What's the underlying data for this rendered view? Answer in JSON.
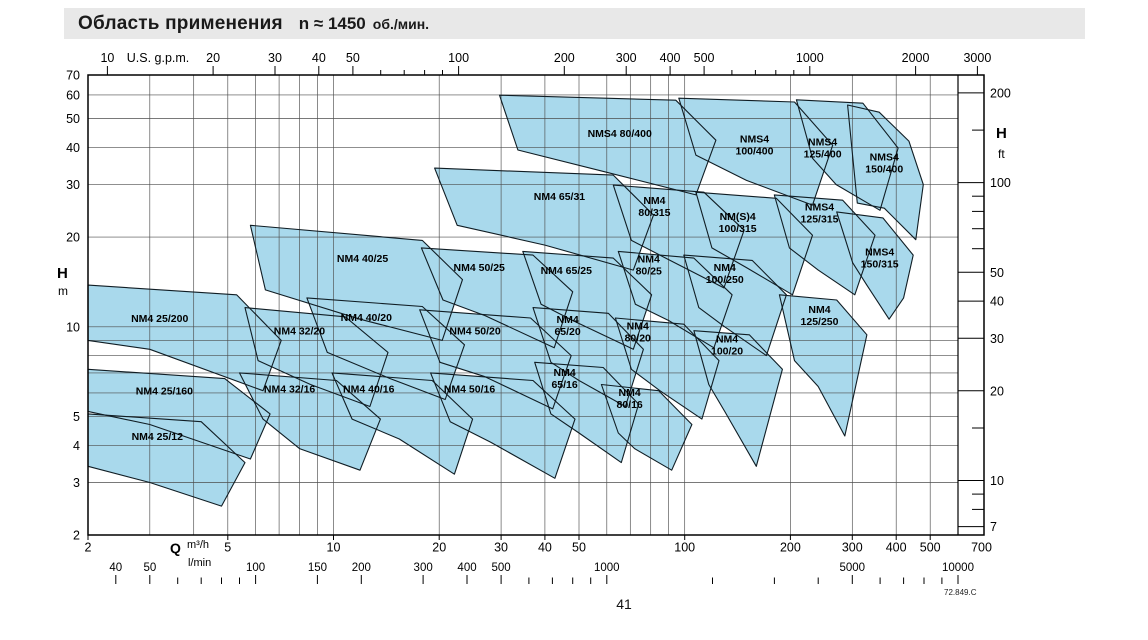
{
  "header": {
    "title": "Область применения",
    "speed": "n ≈ 1450",
    "speed_unit": "об./мин."
  },
  "footer": {
    "page_number": "41",
    "doc_ref": "72.849.C"
  },
  "chart_data": {
    "type": "area",
    "title": "Область применения n ≈ 1450 об./мин.",
    "x": {
      "axis": "Q",
      "unit_primary": "m³/h",
      "unit_secondary": "l/min",
      "min": 2,
      "max": 600,
      "grid": [
        2,
        3,
        4,
        5,
        6,
        7,
        8,
        9,
        10,
        20,
        30,
        40,
        50,
        60,
        70,
        80,
        90,
        100,
        200,
        300,
        400,
        500,
        600
      ],
      "labels": [
        2,
        5,
        10,
        20,
        30,
        40,
        50,
        100,
        200,
        300,
        400,
        500,
        700
      ]
    },
    "y": {
      "axis": "H",
      "unit": "m",
      "min": 2,
      "max": 70,
      "grid": [
        2,
        3,
        4,
        5,
        6,
        7,
        8,
        9,
        10,
        20,
        30,
        40,
        50,
        60,
        70
      ],
      "labels": [
        2,
        3,
        4,
        5,
        10,
        20,
        30,
        40,
        50,
        60,
        70
      ]
    },
    "gpm_scale": {
      "title": "U.S. g.p.m.",
      "per_m3h": 4.4029,
      "labels": [
        10,
        20,
        30,
        40,
        50,
        100,
        200,
        300,
        400,
        500,
        1000,
        2000,
        3000
      ],
      "minor_ticks": [
        60,
        70,
        80,
        90,
        600,
        700,
        800,
        900
      ]
    },
    "lmin_scale": {
      "title": "l/min",
      "per_m3h": 16.6667,
      "labels": [
        40,
        50,
        100,
        150,
        200,
        300,
        400,
        500,
        1000,
        5000,
        10000
      ],
      "minor_ticks": [
        60,
        70,
        80,
        90,
        600,
        700,
        800,
        900,
        2000,
        3000,
        4000,
        6000,
        7000,
        8000,
        9000
      ]
    },
    "ft_scale": {
      "title": "H",
      "unit": "ft",
      "per_m": 3.2808,
      "labels": [
        7,
        10,
        20,
        30,
        40,
        50,
        100,
        200
      ],
      "minor_ticks": [
        8,
        9,
        15,
        60,
        70,
        80,
        90,
        150
      ]
    },
    "colors": {
      "region_fill": "#a9d9ec",
      "region_stroke": "#101d24",
      "grid": "#4d4d4d",
      "border": "#000000",
      "header_bg": "#e8e8e8"
    },
    "regions": [
      {
        "name": "NM4 25/12",
        "lines": [
          "NM4 25/12"
        ],
        "label_at": [
          3.15,
          4.3
        ],
        "points": [
          [
            2,
            5.1
          ],
          [
            4.2,
            4.8
          ],
          [
            5.6,
            3.5
          ],
          [
            4.8,
            2.5
          ],
          [
            3.0,
            3.0
          ],
          [
            2,
            3.4
          ]
        ]
      },
      {
        "name": "NM4 25/160",
        "lines": [
          "NM4 25/160"
        ],
        "label_at": [
          3.3,
          6.1
        ],
        "points": [
          [
            2,
            7.2
          ],
          [
            4.9,
            6.7
          ],
          [
            6.6,
            5.1
          ],
          [
            5.8,
            3.6
          ],
          [
            3.0,
            4.7
          ],
          [
            2,
            5.2
          ]
        ]
      },
      {
        "name": "NM4 25/200",
        "lines": [
          "NM4 25/200"
        ],
        "label_at": [
          3.2,
          10.7
        ],
        "points": [
          [
            2,
            13.8
          ],
          [
            5.3,
            12.8
          ],
          [
            7.1,
            9.0
          ],
          [
            6.3,
            6.1
          ],
          [
            3.0,
            8.4
          ],
          [
            2,
            9.0
          ]
        ]
      },
      {
        "name": "NM4 32/16",
        "lines": [
          "NM4 32/16"
        ],
        "label_at": [
          7.5,
          6.2
        ],
        "points": [
          [
            5.4,
            7.0
          ],
          [
            10.2,
            6.6
          ],
          [
            13.6,
            4.9
          ],
          [
            11.9,
            3.3
          ],
          [
            8.0,
            3.9
          ],
          [
            6.3,
            4.9
          ]
        ]
      },
      {
        "name": "NM4 32/20",
        "lines": [
          "NM4 32/20"
        ],
        "label_at": [
          8.0,
          9.7
        ],
        "points": [
          [
            5.6,
            11.6
          ],
          [
            10.8,
            10.8
          ],
          [
            14.3,
            8.2
          ],
          [
            12.7,
            5.4
          ],
          [
            8.6,
            6.4
          ],
          [
            6.1,
            7.7
          ]
        ]
      },
      {
        "name": "NM4 40/16",
        "lines": [
          "NM4 40/16"
        ],
        "label_at": [
          12.6,
          6.2
        ],
        "points": [
          [
            9.9,
            7.0
          ],
          [
            19.1,
            6.6
          ],
          [
            24.9,
            4.9
          ],
          [
            22.1,
            3.2
          ],
          [
            15.4,
            4.2
          ],
          [
            11.3,
            4.9
          ]
        ]
      },
      {
        "name": "NM4 40/20",
        "lines": [
          "NM4 40/20"
        ],
        "label_at": [
          12.4,
          10.8
        ],
        "points": [
          [
            8.4,
            12.5
          ],
          [
            17.9,
            11.7
          ],
          [
            23.6,
            8.7
          ],
          [
            20.8,
            5.7
          ],
          [
            14.5,
            6.7
          ],
          [
            9.6,
            8.2
          ]
        ]
      },
      {
        "name": "NM4 40/25",
        "lines": [
          "NM4 40/25"
        ],
        "label_at": [
          12.1,
          17.0
        ],
        "points": [
          [
            5.8,
            21.9
          ],
          [
            17.9,
            19.5
          ],
          [
            23.3,
            14.4
          ],
          [
            20.4,
            9.0
          ],
          [
            11.9,
            10.6
          ],
          [
            6.4,
            13.3
          ]
        ]
      },
      {
        "name": "NM4 50/16",
        "lines": [
          "NM4 50/16"
        ],
        "label_at": [
          24.4,
          6.2
        ],
        "points": [
          [
            18.9,
            7.0
          ],
          [
            37,
            6.6
          ],
          [
            48.7,
            4.9
          ],
          [
            42.7,
            3.1
          ],
          [
            28,
            4.1
          ],
          [
            21.5,
            4.8
          ]
        ]
      },
      {
        "name": "NM4 50/20",
        "lines": [
          "NM4 50/20"
        ],
        "label_at": [
          25.3,
          9.7
        ],
        "points": [
          [
            17.6,
            11.4
          ],
          [
            36.4,
            10.7
          ],
          [
            47.5,
            8.0
          ],
          [
            42.1,
            5.3
          ],
          [
            27,
            6.8
          ],
          [
            20.1,
            7.6
          ]
        ]
      },
      {
        "name": "NM4 50/25",
        "lines": [
          "NM4 50/25"
        ],
        "label_at": [
          26,
          15.9
        ],
        "points": [
          [
            17.8,
            18.4
          ],
          [
            37,
            17.4
          ],
          [
            48,
            13.1
          ],
          [
            42.5,
            8.5
          ],
          [
            27,
            10.9
          ],
          [
            20.5,
            12.3
          ]
        ]
      },
      {
        "name": "NM4 65/16",
        "lines": [
          "NM4",
          "65/16"
        ],
        "label_at": [
          45.5,
          6.7
        ],
        "points": [
          [
            37.4,
            7.6
          ],
          [
            58.6,
            7.3
          ],
          [
            73.9,
            5.5
          ],
          [
            66,
            3.5
          ],
          [
            50,
            4.4
          ],
          [
            41.6,
            5.1
          ]
        ]
      },
      {
        "name": "NM4 65/20",
        "lines": [
          "NM4",
          "65/20"
        ],
        "label_at": [
          46.4,
          10.1
        ],
        "points": [
          [
            37,
            11.6
          ],
          [
            60.6,
            11.1
          ],
          [
            76.3,
            8.4
          ],
          [
            67.8,
            5.4
          ],
          [
            50,
            6.6
          ],
          [
            41.6,
            7.6
          ]
        ]
      },
      {
        "name": "NM4 65/25",
        "lines": [
          "NM4 65/25"
        ],
        "label_at": [
          46,
          15.5
        ],
        "points": [
          [
            34.6,
            17.9
          ],
          [
            62.6,
            17.0
          ],
          [
            80.5,
            12.8
          ],
          [
            71.4,
            8.4
          ],
          [
            48,
            10.5
          ],
          [
            39,
            11.9
          ]
        ]
      },
      {
        "name": "NM4 65/31",
        "lines": [
          "NM4 65/31"
        ],
        "label_at": [
          44,
          27.5
        ],
        "points": [
          [
            19.4,
            34.1
          ],
          [
            62.6,
            32.3
          ],
          [
            81.5,
            23.7
          ],
          [
            71.4,
            15.5
          ],
          [
            40,
            18.8
          ],
          [
            22.5,
            21.9
          ]
        ]
      },
      {
        "name": "NM4 80/16",
        "lines": [
          "NM4",
          "80/16"
        ],
        "label_at": [
          69.7,
          5.75
        ],
        "points": [
          [
            57.9,
            6.4
          ],
          [
            84.3,
            6.1
          ],
          [
            104.8,
            4.7
          ],
          [
            91.8,
            3.3
          ],
          [
            72,
            3.9
          ],
          [
            64.7,
            4.4
          ]
        ]
      },
      {
        "name": "NM4 80/20",
        "lines": [
          "NM4",
          "80/20"
        ],
        "label_at": [
          73.5,
          9.6
        ],
        "points": [
          [
            63.5,
            10.7
          ],
          [
            99.4,
            10.2
          ],
          [
            125.2,
            7.7
          ],
          [
            111.9,
            4.9
          ],
          [
            85,
            6.1
          ],
          [
            70.5,
            7.2
          ]
        ]
      },
      {
        "name": "NM4 80/25",
        "lines": [
          "NM4",
          "80/25"
        ],
        "label_at": [
          79,
          16.1
        ],
        "points": [
          [
            64.7,
            17.9
          ],
          [
            106.2,
            17.0
          ],
          [
            136.4,
            12.8
          ],
          [
            121.1,
            8.5
          ],
          [
            90,
            10.5
          ],
          [
            72.4,
            11.9
          ]
        ]
      },
      {
        "name": "NM4 80/315",
        "lines": [
          "NM4",
          "80/315"
        ],
        "label_at": [
          82,
          25.3
        ],
        "points": [
          [
            62.6,
            29.9
          ],
          [
            113.4,
            28.3
          ],
          [
            147.6,
            21.1
          ],
          [
            129.3,
            13.5
          ],
          [
            90,
            16.8
          ],
          [
            70.5,
            19.5
          ]
        ]
      },
      {
        "name": "NMS4 80/400",
        "lines": [
          "NMS4 80/400"
        ],
        "label_at": [
          65.3,
          44.7
        ],
        "points": [
          [
            29.7,
            59.9
          ],
          [
            94.3,
            57.6
          ],
          [
            122.7,
            42.3
          ],
          [
            107.6,
            27.7
          ],
          [
            60,
            33
          ],
          [
            33.5,
            39.2
          ]
        ]
      },
      {
        "name": "NM4 100/20",
        "lines": [
          "NM4",
          "100/20"
        ],
        "label_at": [
          132,
          8.7
        ],
        "points": [
          [
            106.2,
            9.7
          ],
          [
            152.7,
            9.4
          ],
          [
            189.7,
            7.2
          ],
          [
            159.9,
            3.4
          ],
          [
            130,
            5.2
          ],
          [
            117.1,
            6.4
          ]
        ]
      },
      {
        "name": "NM4 100/250",
        "lines": [
          "NM4",
          "100/250"
        ],
        "label_at": [
          130,
          15.1
        ],
        "points": [
          [
            99.4,
            17.4
          ],
          [
            155.7,
            16.7
          ],
          [
            194.8,
            12.8
          ],
          [
            170.8,
            8.0
          ],
          [
            130,
            10
          ],
          [
            109.7,
            11.6
          ]
        ]
      },
      {
        "name": "NM(S)4 100/315",
        "lines": [
          "NM(S)4",
          "100/315"
        ],
        "label_at": [
          141.5,
          22.4
        ],
        "points": [
          [
            107.6,
            28.3
          ],
          [
            182.3,
            27.0
          ],
          [
            231.2,
            20.3
          ],
          [
            202.8,
            12.8
          ],
          [
            150,
            15.8
          ],
          [
            119.5,
            18.4
          ]
        ]
      },
      {
        "name": "NMS4 100/400",
        "lines": [
          "NMS4",
          "100/400"
        ],
        "label_at": [
          158,
          40.7
        ],
        "points": [
          [
            96.2,
            58.5
          ],
          [
            205.4,
            56.8
          ],
          [
            263.9,
            40.7
          ],
          [
            231.2,
            25.6
          ],
          [
            150,
            31
          ],
          [
            107.6,
            37.7
          ]
        ]
      },
      {
        "name": "NM4 125/250",
        "lines": [
          "NM4",
          "125/250"
        ],
        "label_at": [
          242,
          10.9
        ],
        "points": [
          [
            186,
            12.8
          ],
          [
            270.8,
            12.3
          ],
          [
            330.2,
            9.4
          ],
          [
            285.6,
            4.3
          ],
          [
            240,
            6.3
          ],
          [
            205.4,
            7.7
          ]
        ]
      },
      {
        "name": "NMS4 125/315",
        "lines": [
          "NMS4",
          "125/315"
        ],
        "label_at": [
          242,
          24.1
        ],
        "points": [
          [
            179.9,
            27.7
          ],
          [
            281.8,
            26.6
          ],
          [
            348.1,
            20.3
          ],
          [
            305,
            12.8
          ],
          [
            240,
            15.5
          ],
          [
            198.7,
            18.4
          ]
        ]
      },
      {
        "name": "NMS4 125/400",
        "lines": [
          "NMS4",
          "125/400"
        ],
        "label_at": [
          247,
          39.8
        ],
        "points": [
          [
            208,
            57.8
          ],
          [
            321.7,
            56.3
          ],
          [
            405.2,
            39.8
          ],
          [
            359.7,
            24.6
          ],
          [
            270,
            30
          ],
          [
            231.2,
            36.8
          ]
        ]
      },
      {
        "name": "NMS4 150/315",
        "lines": [
          "NMS4",
          "150/315"
        ],
        "label_at": [
          359,
          17.0
        ],
        "points": [
          [
            270.8,
            24.3
          ],
          [
            366.8,
            23.2
          ],
          [
            447.3,
            17.4
          ],
          [
            420,
            12.5
          ],
          [
            382,
            10.6
          ],
          [
            330,
            13.8
          ],
          [
            300.9,
            16.4
          ]
        ]
      },
      {
        "name": "NMS4 150/400",
        "lines": [
          "NMS4",
          "150/400"
        ],
        "label_at": [
          370,
          35.5
        ],
        "points": [
          [
            291,
            55.5
          ],
          [
            358,
            52.5
          ],
          [
            435,
            42
          ],
          [
            478,
            30
          ],
          [
            455,
            19.6
          ],
          [
            370,
            25
          ],
          [
            310,
            26
          ]
        ]
      }
    ]
  }
}
